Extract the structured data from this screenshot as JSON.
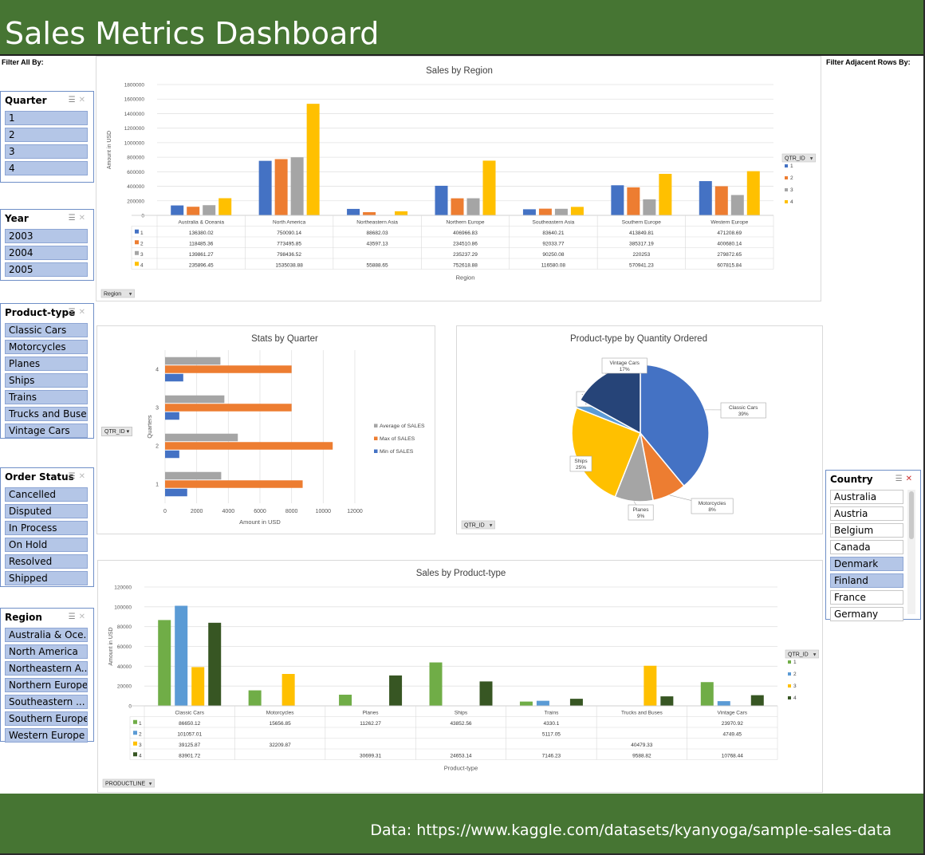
{
  "header": {
    "title": "Sales Metrics Dashboard"
  },
  "footer": {
    "source": "Data: https://www.kaggle.com/datasets/kyanyoga/sample-sales-data"
  },
  "labels": {
    "filter_all": "Filter All By:",
    "filter_adjacent": "Filter Adjacent Rows By:"
  },
  "slicers": {
    "quarter": {
      "title": "Quarter",
      "items": [
        {
          "label": "1",
          "selected": true
        },
        {
          "label": "2",
          "selected": true
        },
        {
          "label": "3",
          "selected": true
        },
        {
          "label": "4",
          "selected": true
        }
      ]
    },
    "year": {
      "title": "Year",
      "items": [
        {
          "label": "2003",
          "selected": true
        },
        {
          "label": "2004",
          "selected": true
        },
        {
          "label": "2005",
          "selected": true
        }
      ]
    },
    "product_type": {
      "title": "Product-type",
      "items": [
        {
          "label": "Classic Cars",
          "selected": true
        },
        {
          "label": "Motorcycles",
          "selected": true
        },
        {
          "label": "Planes",
          "selected": true
        },
        {
          "label": "Ships",
          "selected": true
        },
        {
          "label": "Trains",
          "selected": true
        },
        {
          "label": "Trucks and Buses",
          "selected": true
        },
        {
          "label": "Vintage Cars",
          "selected": true
        }
      ]
    },
    "order_status": {
      "title": "Order Status",
      "items": [
        {
          "label": "Cancelled",
          "selected": true
        },
        {
          "label": "Disputed",
          "selected": true
        },
        {
          "label": "In Process",
          "selected": true
        },
        {
          "label": "On Hold",
          "selected": true
        },
        {
          "label": "Resolved",
          "selected": true
        },
        {
          "label": "Shipped",
          "selected": true
        }
      ]
    },
    "region": {
      "title": "Region",
      "items": [
        {
          "label": "Australia & Oce...",
          "selected": true
        },
        {
          "label": "North America",
          "selected": true
        },
        {
          "label": "Northeastern A...",
          "selected": true
        },
        {
          "label": "Northern Europe",
          "selected": true
        },
        {
          "label": "Southeastern ...",
          "selected": true
        },
        {
          "label": "Southern Europe",
          "selected": true
        },
        {
          "label": "Western Europe",
          "selected": true
        }
      ]
    },
    "country": {
      "title": "Country",
      "items": [
        {
          "label": "Australia",
          "selected": false
        },
        {
          "label": "Austria",
          "selected": false
        },
        {
          "label": "Belgium",
          "selected": false
        },
        {
          "label": "Canada",
          "selected": false
        },
        {
          "label": "Denmark",
          "selected": true
        },
        {
          "label": "Finland",
          "selected": true
        },
        {
          "label": "France",
          "selected": false
        },
        {
          "label": "Germany",
          "selected": false
        }
      ]
    }
  },
  "colors": {
    "q1": "#4472c4",
    "q2": "#ed7d31",
    "q3": "#a5a5a5",
    "q4": "#ffc000",
    "p1": "#70ad47",
    "p2": "#5b9bd5",
    "p3": "#ffc000",
    "p4": "#375623",
    "header_bg": "#467533",
    "slicer_selected": "#b4c6e7"
  },
  "icons": {
    "multiselect": "multi-select-icon",
    "clear": "clear-filter-icon",
    "dropdown": "dropdown-arrow-icon"
  },
  "chart_data": [
    {
      "id": "sales_by_region",
      "type": "bar",
      "title": "Sales by Region",
      "xlabel": "Region",
      "ylabel": "Amount in USD",
      "ylim": [
        0,
        1800000
      ],
      "yticks": [
        "0",
        "200000",
        "400000",
        "600000",
        "800000",
        "1000000",
        "1200000",
        "1400000",
        "1600000",
        "1800000"
      ],
      "legend_title": "QTR_ID",
      "filter_button": "Region",
      "categories": [
        "Australia & Oceania",
        "North America",
        "Northeastern Asia",
        "Northern Europe",
        "Southeastern Asia",
        "Southern Europe",
        "Western Europe"
      ],
      "series": [
        {
          "name": "1",
          "color": "#4472c4",
          "values": [
            136380.02,
            750090.14,
            88682.03,
            406966.83,
            83640.21,
            413849.81,
            471208.69
          ],
          "labels": [
            "136380.02",
            "750090.14",
            "88682.03",
            "406966.83",
            "83640.21",
            "413849.81",
            "471208.69"
          ]
        },
        {
          "name": "2",
          "color": "#ed7d31",
          "values": [
            118485.36,
            773495.85,
            43597.13,
            234510.86,
            92033.77,
            385317.19,
            400680.14
          ],
          "labels": [
            "118485.36",
            "773495.85",
            "43597.13",
            "234510.86",
            "92033.77",
            "385317.19",
            "400680.14"
          ]
        },
        {
          "name": "3",
          "color": "#a5a5a5",
          "values": [
            139861.27,
            798436.52,
            null,
            235237.29,
            90250.08,
            220253,
            279872.65
          ],
          "labels": [
            "139861.27",
            "798436.52",
            "",
            "235237.29",
            "90250.08",
            "220253",
            "279872.65"
          ]
        },
        {
          "name": "4",
          "color": "#ffc000",
          "values": [
            235896.45,
            1535038.88,
            55888.65,
            752618.88,
            116580.08,
            570941.23,
            607815.84
          ],
          "labels": [
            "235896.45",
            "1535038.88",
            "55888.65",
            "752618.88",
            "116580.08",
            "570941.23",
            "607815.84"
          ]
        }
      ]
    },
    {
      "id": "stats_by_quarter",
      "type": "bar",
      "orientation": "horizontal",
      "title": "Stats by Quarter",
      "xlabel": "Amount in USD",
      "ylabel": "Quarters",
      "xlim": [
        0,
        12000
      ],
      "xticks": [
        "0",
        "2000",
        "4000",
        "6000",
        "8000",
        "10000",
        "12000"
      ],
      "filter_button": "QTR_ID",
      "categories": [
        "1",
        "2",
        "3",
        "4"
      ],
      "series": [
        {
          "name": "Average of SALES",
          "color": "#a5a5a5",
          "values": [
            3550,
            4600,
            3750,
            3500
          ]
        },
        {
          "name": "Max of SALES",
          "color": "#ed7d31",
          "values": [
            8700,
            10600,
            8000,
            8000
          ]
        },
        {
          "name": "Min of SALES",
          "color": "#4472c4",
          "values": [
            1400,
            900,
            900,
            1150
          ]
        }
      ]
    },
    {
      "id": "product_type_by_quantity",
      "type": "pie",
      "title": "Product-type by Quantity Ordered",
      "filter_button": "QTR_ID",
      "slices": [
        {
          "label": "Classic Cars",
          "pct": "39%",
          "value": 39,
          "color": "#4472c4"
        },
        {
          "label": "Motorcycles",
          "pct": "8%",
          "value": 8,
          "color": "#ed7d31"
        },
        {
          "label": "Planes",
          "pct": "9%",
          "value": 9,
          "color": "#a5a5a5"
        },
        {
          "label": "Ships",
          "pct": "25%",
          "value": 25,
          "color": "#ffc000"
        },
        {
          "label": "Trains",
          "pct": "2%",
          "value": 2,
          "color": "#5b9bd5"
        },
        {
          "label": "Vintage Cars",
          "pct": "17%",
          "value": 17,
          "color": "#264478"
        }
      ]
    },
    {
      "id": "sales_by_product_type",
      "type": "bar",
      "title": "Sales by Product-type",
      "xlabel": "Product-type",
      "ylabel": "Amount in USD",
      "ylim": [
        0,
        120000
      ],
      "yticks": [
        "0",
        "20000",
        "40000",
        "60000",
        "80000",
        "100000",
        "120000"
      ],
      "legend_title": "QTR_ID",
      "filter_button": "PRODUCTLINE",
      "categories": [
        "Classic Cars",
        "Motorcycles",
        "Planes",
        "Ships",
        "Trains",
        "Trucks and Buses",
        "Vintage Cars"
      ],
      "series": [
        {
          "name": "1",
          "color": "#70ad47",
          "values": [
            86650.12,
            15656.85,
            11262.27,
            43852.56,
            4330.1,
            null,
            23970.92
          ],
          "labels": [
            "86650.12",
            "15656.85",
            "11262.27",
            "43852.56",
            "4330.1",
            "",
            "23970.92"
          ]
        },
        {
          "name": "2",
          "color": "#5b9bd5",
          "values": [
            101057.01,
            null,
            null,
            null,
            5117.05,
            null,
            4749.45
          ],
          "labels": [
            "101057.01",
            "",
            "",
            "",
            "5117.05",
            "",
            "4749.45"
          ]
        },
        {
          "name": "3",
          "color": "#ffc000",
          "values": [
            39125.87,
            32209.87,
            null,
            null,
            null,
            40479.33,
            null
          ],
          "labels": [
            "39125.87",
            "32209.87",
            "",
            "",
            "",
            "40479.33",
            ""
          ]
        },
        {
          "name": "4",
          "color": "#375623",
          "values": [
            83901.72,
            null,
            30699.31,
            24653.14,
            7146.23,
            9588.82,
            10768.44
          ],
          "labels": [
            "83901.72",
            "",
            "30699.31",
            "24653.14",
            "7146.23",
            "9588.82",
            "10768.44"
          ]
        }
      ]
    }
  ]
}
